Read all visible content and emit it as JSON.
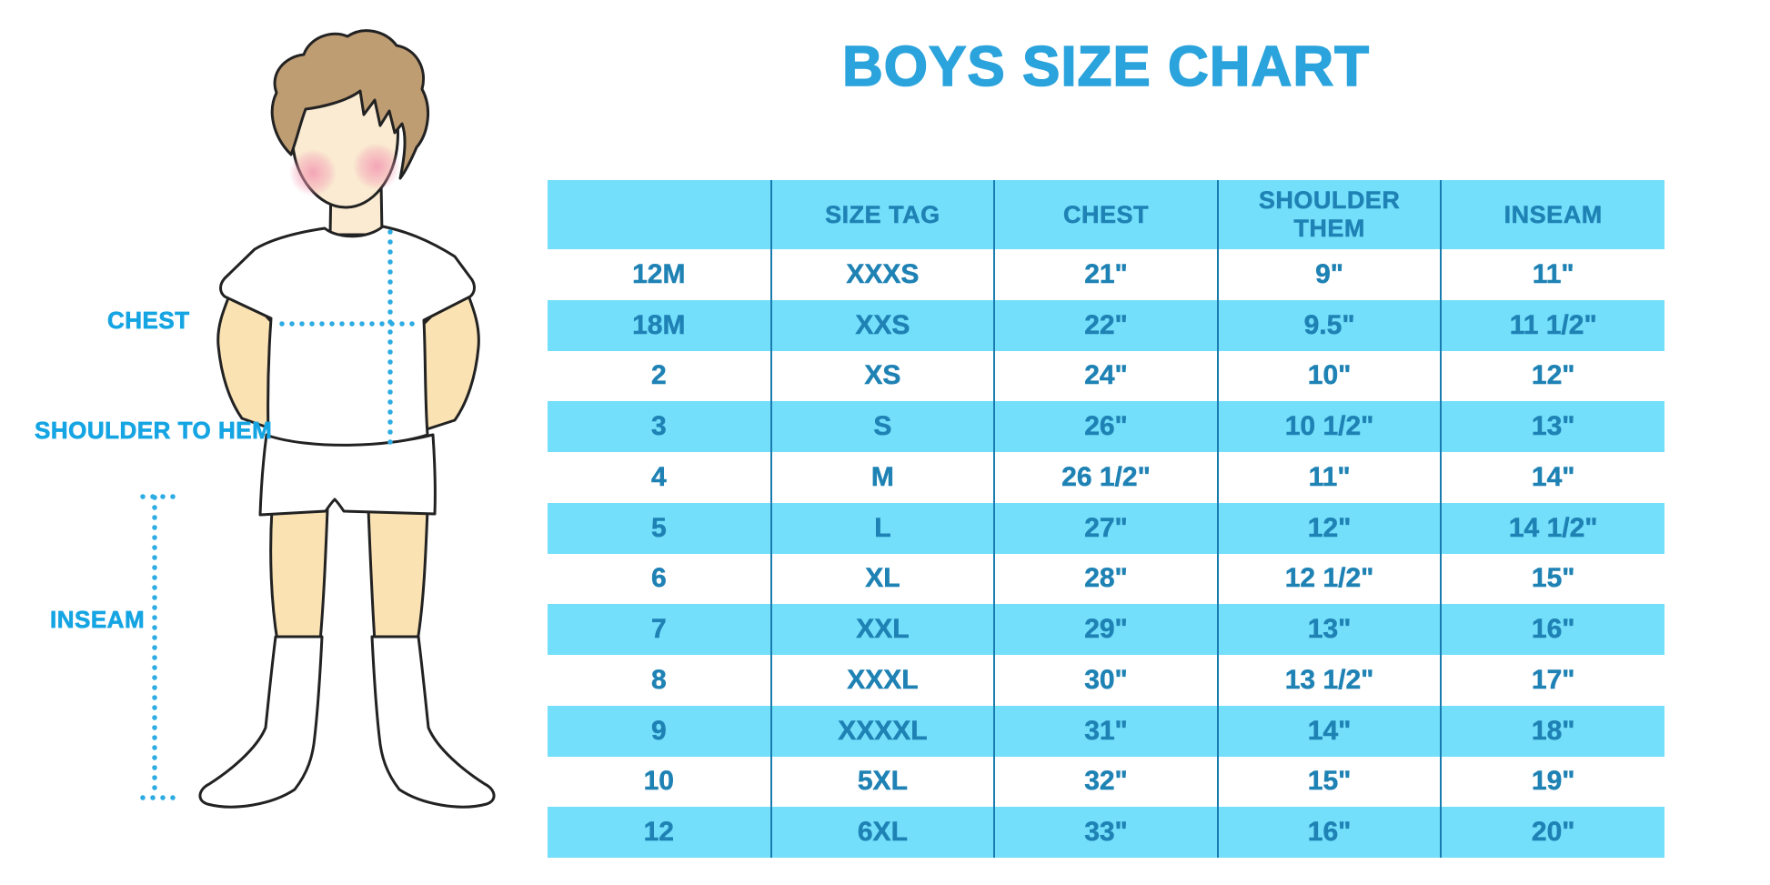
{
  "title": "BOYS SIZE CHART",
  "figure_labels": {
    "chest": "CHEST",
    "shoulder_to_hem": "SHOULDER TO HEM",
    "inseam": "INSEAM"
  },
  "chart_data": {
    "type": "table",
    "title": "BOYS SIZE CHART",
    "columns": [
      "",
      "SIZE TAG",
      "CHEST",
      "SHOULDER THEM",
      "INSEAM"
    ],
    "rows": [
      [
        "12M",
        "XXXS",
        "21\"",
        "9\"",
        "11\""
      ],
      [
        "18M",
        "XXS",
        "22\"",
        "9.5\"",
        "11 1/2\""
      ],
      [
        "2",
        "XS",
        "24\"",
        "10\"",
        "12\""
      ],
      [
        "3",
        "S",
        "26\"",
        "10 1/2\"",
        "13\""
      ],
      [
        "4",
        "M",
        "26 1/2\"",
        "11\"",
        "14\""
      ],
      [
        "5",
        "L",
        "27\"",
        "12\"",
        "14 1/2\""
      ],
      [
        "6",
        "XL",
        "28\"",
        "12 1/2\"",
        "15\""
      ],
      [
        "7",
        "XXL",
        "29\"",
        "13\"",
        "16\""
      ],
      [
        "8",
        "XXXL",
        "30\"",
        "13 1/2\"",
        "17\""
      ],
      [
        "9",
        "XXXXL",
        "31\"",
        "14\"",
        "18\""
      ],
      [
        "10",
        "5XL",
        "32\"",
        "15\"",
        "19\""
      ],
      [
        "12",
        "6XL",
        "33\"",
        "16\"",
        "20\""
      ]
    ],
    "banding": "header and alternate rows highlighted",
    "grid": "vertical column dividers only"
  },
  "colors": {
    "title_blue": "#2ba3dc",
    "label_blue": "#16a5e3",
    "band_cyan": "#73dffb",
    "cell_text": "#1f82b4",
    "divider": "#187cb0",
    "dotted_line": "#2cace3",
    "face_skin": "#faebd2",
    "body_skin": "#fae2b3",
    "hair_brown": "#bf9d73",
    "blush_pink": "#f399b2",
    "outline_dark": "#222222",
    "garment_white": "#ffffff"
  }
}
